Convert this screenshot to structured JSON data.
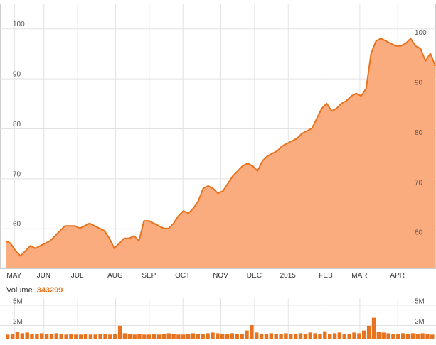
{
  "chart_data": [
    {
      "type": "area",
      "ylim": [
        52,
        105
      ],
      "y_ticks": [
        60,
        70,
        80,
        90,
        100
      ],
      "x_tick_labels": [
        "MAY",
        "JUN",
        "JUL",
        "AUG",
        "SEP",
        "OCT",
        "NOV",
        "DEC",
        "2015",
        "FEB",
        "MAR",
        "APR"
      ],
      "x_tick_weeks": [
        2,
        9,
        17,
        26,
        34,
        42,
        51,
        59,
        67,
        76,
        84,
        93
      ],
      "x_span_weeks": [
        0,
        102
      ],
      "grid": true,
      "line_color": "#e8731e",
      "fill_color": "#fbac7f",
      "series": [
        {
          "values": [
            57.5,
            57.0,
            55.5,
            54.5,
            55.5,
            56.5,
            56.0,
            56.5,
            57.0,
            57.5,
            58.5,
            59.5,
            60.5,
            60.5,
            60.5,
            60.0,
            60.5,
            61.0,
            60.5,
            60.0,
            59.5,
            58.0,
            56.0,
            57.0,
            58.0,
            58.0,
            58.5,
            57.5,
            61.5,
            61.5,
            61.0,
            60.5,
            60.0,
            60.0,
            61.0,
            62.5,
            63.5,
            63.0,
            64.0,
            65.5,
            68.0,
            68.5,
            68.0,
            67.0,
            67.5,
            69.0,
            70.5,
            71.5,
            72.5,
            73.0,
            72.5,
            71.5,
            73.5,
            74.5,
            75.0,
            75.5,
            76.5,
            77.0,
            77.5,
            78.0,
            79.0,
            79.5,
            80.0,
            82.0,
            84.0,
            85.0,
            83.5,
            84.0,
            85.0,
            85.5,
            86.5,
            87.0,
            86.5,
            88.0,
            95.0,
            97.5,
            98.0,
            97.5,
            97.0,
            96.5,
            96.5,
            97.0,
            98.0,
            96.5,
            96.0,
            93.5,
            95.0,
            92.5
          ]
        }
      ]
    },
    {
      "type": "bar",
      "title": "Volume",
      "current_value": "343299",
      "ylim": [
        0,
        6000000
      ],
      "y_tick_labels": [
        "5M",
        "2M"
      ],
      "y_tick_values": [
        5000000,
        2000000
      ],
      "grid": true,
      "bar_color": "#e8731e",
      "values": [
        600000,
        700000,
        1000000,
        800000,
        900000,
        700000,
        700000,
        800000,
        700000,
        700000,
        800000,
        700000,
        600000,
        700000,
        600000,
        600000,
        700000,
        600000,
        600000,
        700000,
        700000,
        600000,
        700000,
        1900000,
        800000,
        700000,
        600000,
        700000,
        600000,
        600000,
        700000,
        600000,
        700000,
        800000,
        700000,
        600000,
        600000,
        700000,
        800000,
        700000,
        700000,
        800000,
        900000,
        800000,
        700000,
        700000,
        800000,
        700000,
        700000,
        1200000,
        2000000,
        900000,
        700000,
        700000,
        800000,
        700000,
        700000,
        800000,
        700000,
        700000,
        800000,
        700000,
        900000,
        800000,
        700000,
        1100000,
        700000,
        800000,
        900000,
        700000,
        700000,
        900000,
        800000,
        1200000,
        1900000,
        3100000,
        1000000,
        900000,
        800000,
        700000,
        700000,
        800000,
        700000,
        800000,
        700000,
        800000,
        700000,
        600000
      ]
    }
  ]
}
